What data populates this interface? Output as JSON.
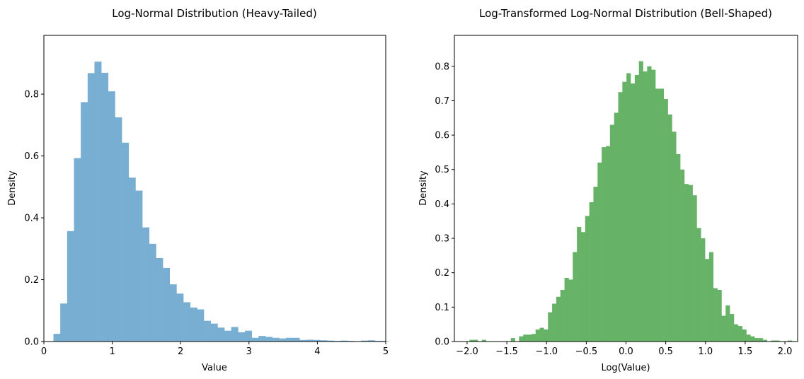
{
  "chart_data": [
    {
      "type": "bar",
      "title": "Log-Normal Distribution (Heavy-Tailed)",
      "xlabel": "Value",
      "ylabel": "Density",
      "xlim": [
        0,
        5
      ],
      "ylim": [
        0,
        0.99
      ],
      "xticks": [
        "0",
        "1",
        "2",
        "3",
        "4",
        "5"
      ],
      "yticks": [
        "0.0",
        "0.2",
        "0.4",
        "0.6",
        "0.8"
      ],
      "color": "#77aed2",
      "bin_start": 0.14,
      "bin_width": 0.1,
      "values": [
        0.025,
        0.123,
        0.357,
        0.593,
        0.774,
        0.868,
        0.905,
        0.869,
        0.809,
        0.725,
        0.643,
        0.53,
        0.488,
        0.369,
        0.316,
        0.27,
        0.238,
        0.185,
        0.155,
        0.127,
        0.11,
        0.104,
        0.067,
        0.058,
        0.045,
        0.035,
        0.047,
        0.03,
        0.035,
        0.012,
        0.018,
        0.015,
        0.012,
        0.01,
        0.012,
        0.012,
        0.005,
        0.006,
        0.005,
        0.004,
        0.003,
        0.002,
        0.003,
        0.002,
        0.001,
        0.003,
        0.004,
        0.002,
        0.002
      ]
    },
    {
      "type": "bar",
      "title": "Log-Transformed Log-Normal Distribution (Bell-Shaped)",
      "xlabel": "Log(Value)",
      "ylabel": "Density",
      "xlim": [
        -2.16,
        2.16
      ],
      "ylim": [
        0,
        0.89
      ],
      "xticks": [
        "-2.0",
        "-1.5",
        "-1.0",
        "-0.5",
        "0.0",
        "0.5",
        "1.0",
        "1.5",
        "2.0"
      ],
      "yticks": [
        "0.0",
        "0.1",
        "0.2",
        "0.3",
        "0.4",
        "0.5",
        "0.6",
        "0.7",
        "0.8"
      ],
      "color": "#66b266",
      "bin_start": -1.97,
      "bin_width": 0.052,
      "values": [
        0.005,
        0.005,
        0.0,
        0.005,
        0.0,
        0.0,
        0.0,
        0.0,
        0.0,
        0.0,
        0.01,
        0.0,
        0.015,
        0.02,
        0.02,
        0.022,
        0.035,
        0.04,
        0.035,
        0.085,
        0.11,
        0.13,
        0.15,
        0.185,
        0.18,
        0.26,
        0.333,
        0.318,
        0.365,
        0.405,
        0.45,
        0.52,
        0.565,
        0.568,
        0.63,
        0.665,
        0.725,
        0.755,
        0.78,
        0.75,
        0.775,
        0.815,
        0.785,
        0.8,
        0.79,
        0.735,
        0.735,
        0.705,
        0.66,
        0.61,
        0.545,
        0.5,
        0.458,
        0.455,
        0.425,
        0.33,
        0.3,
        0.24,
        0.26,
        0.155,
        0.15,
        0.075,
        0.105,
        0.08,
        0.05,
        0.045,
        0.035,
        0.02,
        0.015,
        0.01,
        0.01,
        0.005,
        0.0,
        0.003,
        0.003,
        0.0,
        0.0,
        0.003
      ]
    }
  ]
}
